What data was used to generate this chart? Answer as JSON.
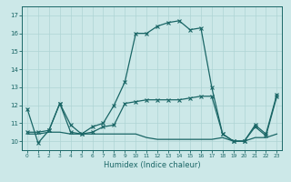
{
  "xlabel": "Humidex (Indice chaleur)",
  "x_ticks": [
    0,
    1,
    2,
    3,
    4,
    5,
    6,
    7,
    8,
    9,
    10,
    11,
    12,
    13,
    14,
    15,
    16,
    17,
    18,
    19,
    20,
    21,
    22,
    23
  ],
  "y_ticks": [
    10,
    11,
    12,
    13,
    14,
    15,
    16,
    17
  ],
  "xlim": [
    -0.5,
    23.5
  ],
  "ylim": [
    9.5,
    17.5
  ],
  "bg_color": "#cce8e8",
  "line_color": "#1a6666",
  "grid_color": "#aed4d4",
  "series1_x": [
    0,
    1,
    2,
    3,
    4,
    5,
    6,
    7,
    8,
    9,
    10,
    11,
    12,
    13,
    14,
    15,
    16,
    17,
    18,
    19,
    20,
    21,
    22,
    23
  ],
  "series1_y": [
    11.8,
    9.9,
    10.6,
    12.1,
    10.9,
    10.4,
    10.8,
    11.0,
    12.0,
    13.3,
    16.0,
    16.0,
    16.4,
    16.6,
    16.7,
    16.2,
    16.3,
    13.0,
    10.4,
    10.0,
    10.0,
    10.9,
    10.4,
    12.6
  ],
  "series2_x": [
    0,
    1,
    2,
    3,
    4,
    5,
    6,
    7,
    8,
    9,
    10,
    11,
    12,
    13,
    14,
    15,
    16,
    17,
    18,
    19,
    20,
    21,
    22,
    23
  ],
  "series2_y": [
    10.5,
    10.5,
    10.6,
    12.1,
    10.5,
    10.4,
    10.5,
    10.8,
    10.9,
    12.1,
    12.2,
    12.3,
    12.3,
    12.3,
    12.3,
    12.4,
    12.5,
    12.5,
    10.4,
    10.0,
    10.0,
    10.8,
    10.3,
    12.5
  ],
  "series3_x": [
    0,
    1,
    2,
    3,
    4,
    5,
    6,
    7,
    8,
    9,
    10,
    11,
    12,
    13,
    14,
    15,
    16,
    17,
    18,
    19,
    20,
    21,
    22,
    23
  ],
  "series3_y": [
    10.4,
    10.4,
    10.5,
    10.5,
    10.4,
    10.4,
    10.4,
    10.4,
    10.4,
    10.4,
    10.4,
    10.2,
    10.1,
    10.1,
    10.1,
    10.1,
    10.1,
    10.1,
    10.2,
    10.0,
    10.0,
    10.2,
    10.2,
    10.4
  ]
}
